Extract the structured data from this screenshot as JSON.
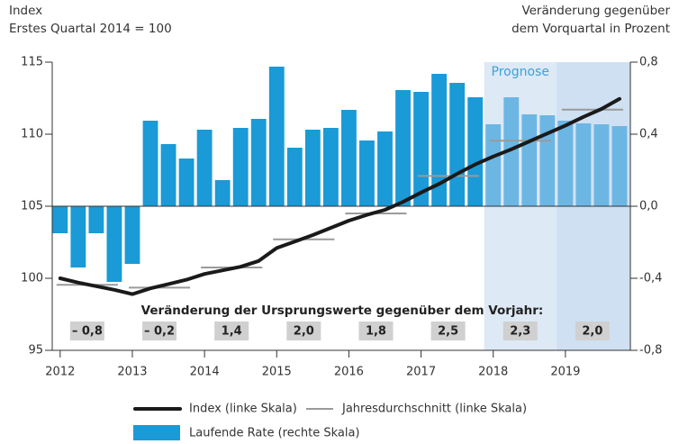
{
  "chart_data": {
    "type": "combo",
    "y_label_lines": [
      "Index",
      "Erstes Quartal 2014 = 100"
    ],
    "y2_label_lines": [
      "Veränderung gegenüber",
      "dem Vorquartal in Prozent"
    ],
    "x": [
      2012,
      2012.25,
      2012.5,
      2012.75,
      2013,
      2013.25,
      2013.5,
      2013.75,
      2014,
      2014.25,
      2014.5,
      2014.75,
      2015,
      2015.25,
      2015.5,
      2015.75,
      2016,
      2016.25,
      2016.5,
      2016.75,
      2017,
      2017.25,
      2017.5,
      2017.75,
      2018,
      2018.25,
      2018.5,
      2018.75,
      2019,
      2019.25,
      2019.5,
      2019.75
    ],
    "xlim": [
      2011.89,
      2019.9
    ],
    "xticks": [
      2012,
      2013,
      2014,
      2015,
      2016,
      2017,
      2018,
      2019
    ],
    "ylim": [
      95,
      115
    ],
    "yticks": [
      95,
      100,
      105,
      110,
      115
    ],
    "y2lim": [
      -0.8,
      0.8
    ],
    "y2ticks": [
      {
        "value": -0.8,
        "label": "-0,8"
      },
      {
        "value": -0.4,
        "label": "-0,4"
      },
      {
        "value": 0,
        "label": "0,0"
      },
      {
        "value": 0.4,
        "label": "0,4"
      },
      {
        "value": 0.8,
        "label": "0,8"
      }
    ],
    "series": [
      {
        "name": "Index (linke Skala)",
        "type": "line",
        "color": "#1a1a1a",
        "values": [
          100.0,
          99.7,
          99.45,
          99.2,
          98.9,
          99.3,
          99.6,
          99.9,
          100.3,
          100.55,
          100.8,
          101.2,
          102.1,
          102.55,
          103.0,
          103.5,
          104.0,
          104.4,
          104.75,
          105.3,
          105.95,
          106.55,
          107.25,
          107.9,
          108.45,
          108.95,
          109.5,
          110.05,
          110.6,
          111.2,
          111.75,
          112.45
        ]
      },
      {
        "name": "Laufende Rate (rechte Skala)",
        "type": "bar",
        "axis": "y2",
        "color": "#1a9ad6",
        "forecast_color": "#6cb6e4",
        "values": [
          -0.15,
          -0.34,
          -0.15,
          -0.42,
          -0.32,
          0.475,
          0.345,
          0.265,
          0.425,
          0.145,
          0.435,
          0.485,
          0.775,
          0.325,
          0.425,
          0.435,
          0.535,
          0.365,
          0.415,
          0.645,
          0.635,
          0.735,
          0.685,
          0.605,
          0.455,
          0.605,
          0.51,
          0.505,
          0.475,
          0.46,
          0.455,
          0.445
        ]
      }
    ],
    "annual_average": {
      "name": "Jahresdurchschnitt (linke Skala)",
      "color": "#9a9a9a",
      "x": [
        2012,
        2013,
        2014,
        2015,
        2016,
        2017,
        2018,
        2019
      ],
      "values": [
        99.55,
        99.35,
        100.75,
        102.7,
        104.5,
        107.1,
        109.55,
        111.7
      ]
    },
    "annotation": {
      "text": "Veränderung der Ursprungswerte gegenüber dem Vorjahr:",
      "x": [
        2012,
        2013,
        2014,
        2015,
        2016,
        2017,
        2018,
        2019
      ],
      "values": [
        -0.8,
        -0.2,
        1.4,
        2.0,
        1.8,
        2.5,
        2.3,
        2.0
      ],
      "value_labels": [
        "– 0,8",
        "– 0,2",
        "1,4",
        "2,0",
        "1,8",
        "2,5",
        "2,3",
        "2,0"
      ]
    },
    "forecast": {
      "label": "Prognose",
      "start": 2017.875,
      "shades": [
        {
          "from": 2017.875,
          "to": 2018.875,
          "color": "#dde9f5"
        },
        {
          "from": 2018.875,
          "to": 2019.9,
          "color": "#cfe0f2"
        }
      ]
    }
  }
}
